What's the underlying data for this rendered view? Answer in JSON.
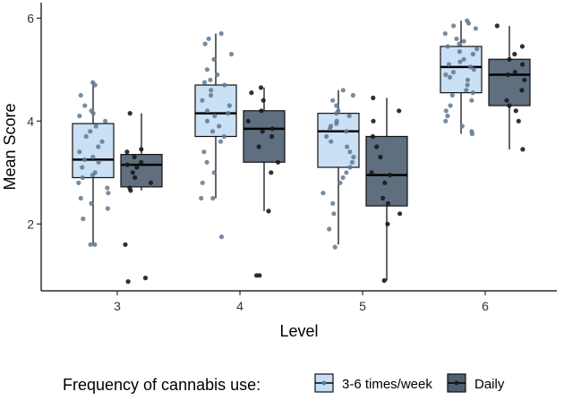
{
  "chart_data": {
    "type": "boxplot",
    "xlabel": "Level",
    "ylabel": "Mean Score",
    "categories": [
      "3",
      "4",
      "5",
      "6"
    ],
    "ylim": [
      0.7,
      6.3
    ],
    "yticks": [
      2,
      4,
      6
    ],
    "grid": false,
    "legend": {
      "title": "Frequency of cannabis use:",
      "placement": "bottom"
    },
    "series": [
      {
        "name": "3-6 times/week",
        "color": "#c6def4",
        "point_color": "#5f7892",
        "boxes": [
          {
            "category": "3",
            "min": 1.6,
            "q1": 2.9,
            "median": 3.25,
            "q3": 3.95,
            "max": 4.75
          },
          {
            "category": "4",
            "min": 2.5,
            "q1": 3.7,
            "median": 4.15,
            "q3": 4.7,
            "max": 5.7
          },
          {
            "category": "5",
            "min": 1.6,
            "q1": 3.1,
            "median": 3.8,
            "q3": 4.15,
            "max": 4.6
          },
          {
            "category": "6",
            "min": 3.75,
            "q1": 4.55,
            "median": 5.05,
            "q3": 5.45,
            "max": 5.95
          }
        ],
        "points": [
          [
            4.75,
            4.7,
            4.5,
            4.3,
            4.2,
            4.15,
            4.1,
            4.0,
            3.9,
            3.8,
            3.7,
            3.6,
            3.5,
            3.4,
            3.3,
            3.25,
            3.2,
            3.1,
            3.0,
            2.95,
            2.9,
            2.8,
            2.7,
            2.6,
            2.5,
            2.4,
            2.3,
            2.1,
            1.6,
            1.6
          ],
          [
            5.7,
            5.6,
            5.5,
            5.3,
            5.2,
            5.0,
            4.9,
            4.8,
            4.75,
            4.7,
            4.6,
            4.5,
            4.4,
            4.3,
            4.2,
            4.15,
            4.1,
            4.0,
            3.9,
            3.8,
            3.7,
            3.6,
            3.4,
            3.2,
            3.0,
            2.8,
            2.5,
            2.5,
            1.75
          ],
          [
            4.6,
            4.5,
            4.4,
            4.3,
            4.2,
            4.15,
            4.1,
            4.0,
            3.95,
            3.9,
            3.85,
            3.8,
            3.7,
            3.6,
            3.5,
            3.4,
            3.3,
            3.2,
            3.1,
            3.0,
            2.9,
            2.8,
            2.6,
            2.4,
            2.2,
            1.9,
            1.55
          ],
          [
            5.95,
            5.9,
            5.85,
            5.8,
            5.7,
            5.6,
            5.55,
            5.5,
            5.45,
            5.4,
            5.35,
            5.3,
            5.2,
            5.15,
            5.1,
            5.05,
            5.0,
            4.95,
            4.9,
            4.85,
            4.8,
            4.7,
            4.6,
            4.55,
            4.5,
            4.4,
            4.3,
            4.2,
            4.1,
            4.0,
            3.9,
            3.8,
            3.75
          ]
        ]
      },
      {
        "name": "Daily",
        "color": "#4e5f72",
        "point_color": "#1a1a1a",
        "boxes": [
          {
            "category": "3",
            "min": 2.65,
            "q1": 2.72,
            "median": 3.15,
            "q3": 3.35,
            "max": 4.15
          },
          {
            "category": "4",
            "min": 2.25,
            "q1": 3.2,
            "median": 3.85,
            "q3": 4.2,
            "max": 4.65
          },
          {
            "category": "5",
            "min": 0.9,
            "q1": 2.35,
            "median": 2.95,
            "q3": 3.7,
            "max": 4.45
          },
          {
            "category": "6",
            "min": 3.45,
            "q1": 4.3,
            "median": 4.9,
            "q3": 5.2,
            "max": 5.85
          }
        ],
        "points": [
          [
            4.15,
            3.45,
            3.4,
            3.3,
            3.2,
            3.15,
            3.1,
            3.0,
            2.9,
            2.8,
            2.7,
            2.65,
            1.6,
            0.95,
            0.88
          ],
          [
            4.65,
            4.55,
            4.4,
            4.2,
            4.0,
            3.85,
            3.8,
            3.7,
            3.5,
            3.2,
            3.0,
            2.25,
            1.0,
            1.0
          ],
          [
            4.45,
            4.2,
            4.0,
            3.7,
            3.5,
            3.3,
            3.0,
            2.95,
            2.8,
            2.5,
            2.4,
            2.2,
            2.0,
            0.9
          ],
          [
            5.85,
            5.45,
            5.3,
            5.2,
            5.1,
            4.95,
            4.9,
            4.8,
            4.6,
            4.4,
            4.3,
            4.2,
            4.0,
            3.45
          ]
        ]
      }
    ]
  }
}
